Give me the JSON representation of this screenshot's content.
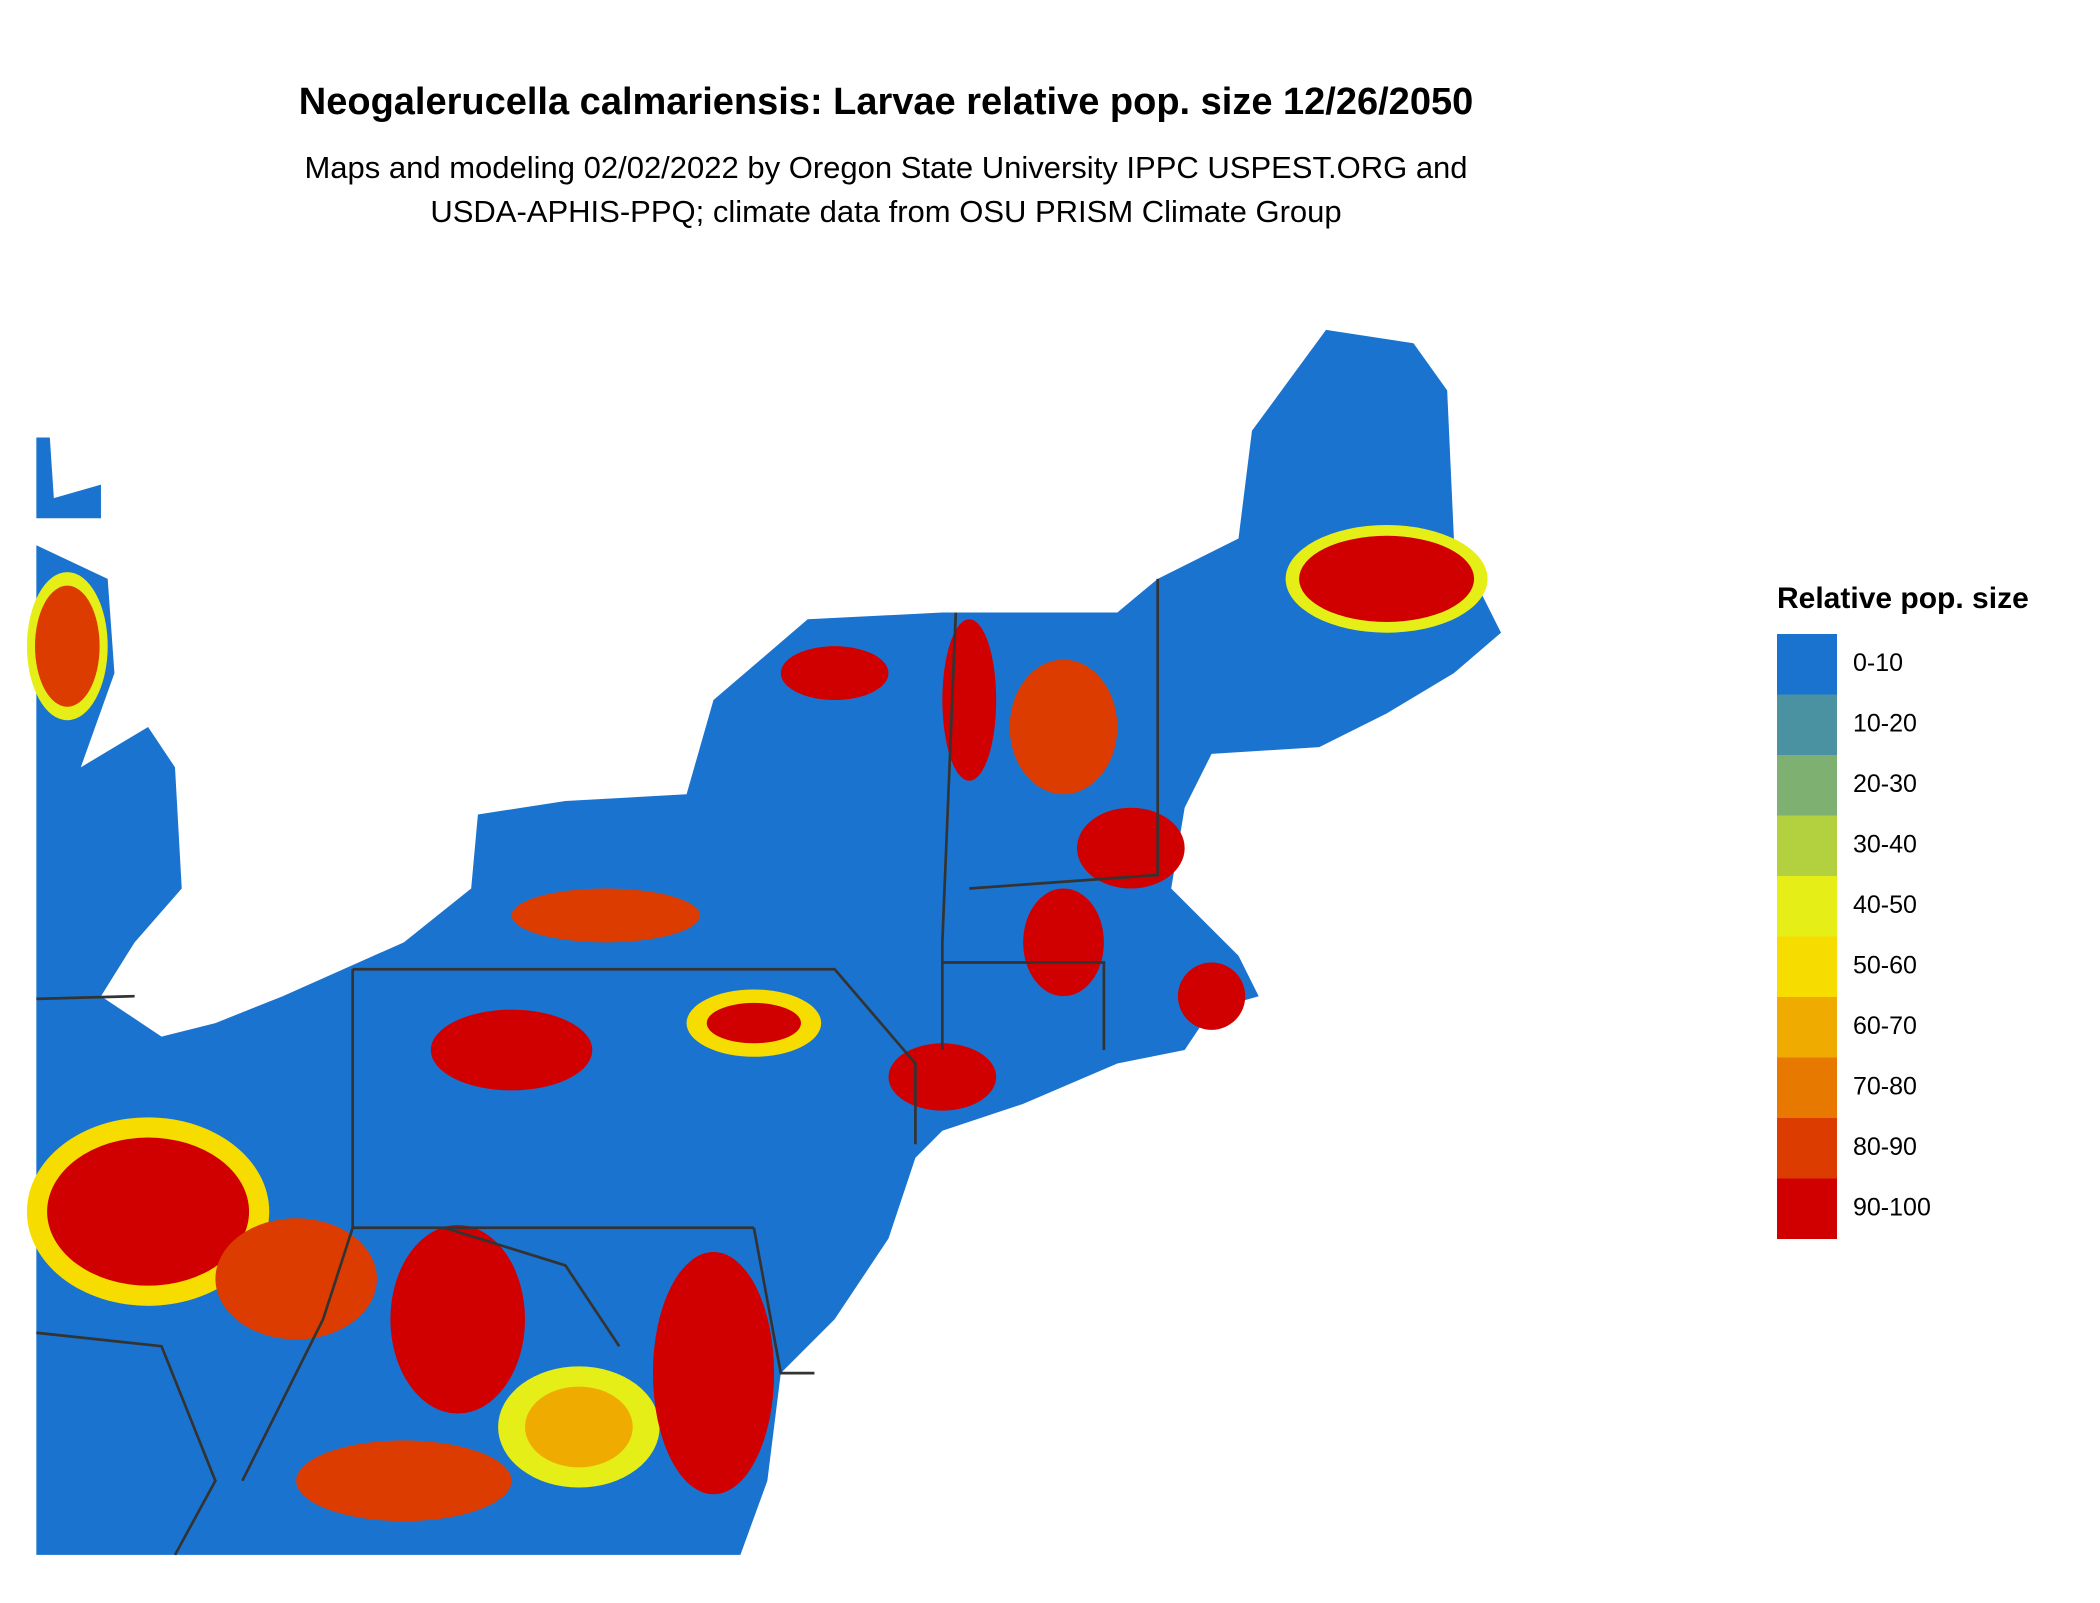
{
  "header": {
    "title": "Neogalerucella calmariensis: Larvae relative pop. size 12/26/2050",
    "subtitle": [
      "Maps and modeling 02/02/2022 by Oregon State University IPPC USPEST.ORG and",
      "USDA-APHIS-PPQ; climate data from OSU PRISM Climate Group"
    ]
  },
  "legend": {
    "title": "Relative pop. size",
    "items": [
      {
        "label": "0-10",
        "color": "#1a74cf"
      },
      {
        "label": "10-20",
        "color": "#4a92a2"
      },
      {
        "label": "20-30",
        "color": "#7eb072"
      },
      {
        "label": "30-40",
        "color": "#b3d03f"
      },
      {
        "label": "40-50",
        "color": "#e6ee18"
      },
      {
        "label": "50-60",
        "color": "#f7dc00"
      },
      {
        "label": "60-70",
        "color": "#efab00"
      },
      {
        "label": "70-80",
        "color": "#e77800"
      },
      {
        "label": "80-90",
        "color": "#dd3c00"
      },
      {
        "label": "90-100",
        "color": "#d00000"
      }
    ]
  }
}
